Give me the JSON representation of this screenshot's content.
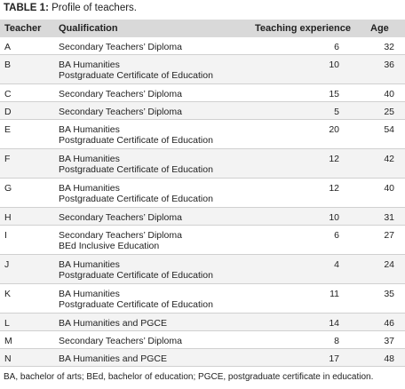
{
  "header": {
    "label": "TABLE 1:",
    "title": "Profile of teachers."
  },
  "table": {
    "columns": [
      "Teacher",
      "Qualification",
      "Teaching experience",
      "Age"
    ],
    "rows": [
      [
        "A",
        [
          "Secondary Teachers’ Diploma"
        ],
        6,
        32
      ],
      [
        "B",
        [
          "BA Humanities",
          "Postgraduate Certificate of Education"
        ],
        10,
        36
      ],
      [
        "C",
        [
          "Secondary Teachers’ Diploma"
        ],
        15,
        40
      ],
      [
        "D",
        [
          "Secondary Teachers’ Diploma"
        ],
        5,
        25
      ],
      [
        "E",
        [
          "BA Humanities",
          "Postgraduate Certificate of Education"
        ],
        20,
        54
      ],
      [
        "F",
        [
          "BA Humanities",
          "Postgraduate Certificate of Education"
        ],
        12,
        42
      ],
      [
        "G",
        [
          "BA Humanities",
          "Postgraduate Certificate of Education"
        ],
        12,
        40
      ],
      [
        "H",
        [
          "Secondary Teachers’ Diploma"
        ],
        10,
        31
      ],
      [
        "I",
        [
          "Secondary Teachers’ Diploma",
          "BEd Inclusive Education"
        ],
        6,
        27
      ],
      [
        "J",
        [
          "BA Humanities",
          "Postgraduate Certificate of Education"
        ],
        4,
        24
      ],
      [
        "K",
        [
          "BA Humanities",
          "Postgraduate Certificate of Education"
        ],
        11,
        35
      ],
      [
        "L",
        [
          "BA Humanities and PGCE"
        ],
        14,
        46
      ],
      [
        "M",
        [
          "Secondary Teachers’ Diploma"
        ],
        8,
        37
      ],
      [
        "N",
        [
          "BA Humanities and PGCE"
        ],
        17,
        48
      ]
    ]
  },
  "footnote": "BA, bachelor of arts; BEd, bachelor of education; PGCE, postgraduate certificate in education."
}
